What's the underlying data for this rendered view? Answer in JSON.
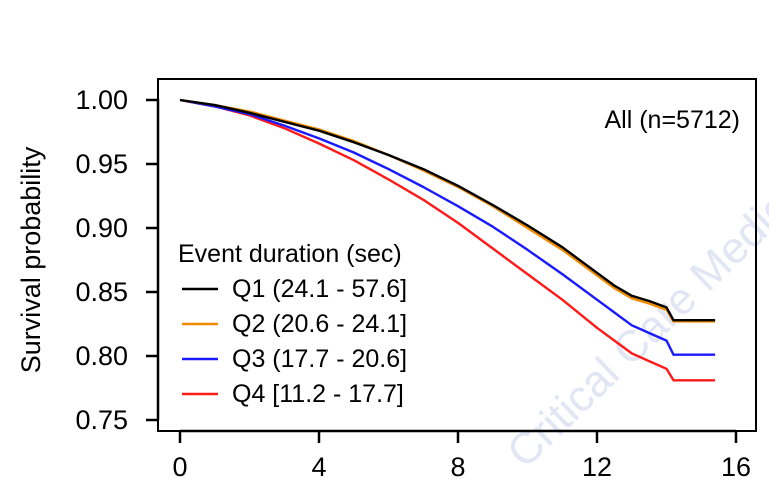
{
  "chart_data": {
    "type": "line",
    "title": "",
    "xlabel": "",
    "ylabel": "Survival probability",
    "annotation": "All (n=5712)",
    "xlim": [
      0,
      16
    ],
    "ylim": [
      0.75,
      1.0
    ],
    "xticks": [
      "0",
      "4",
      "8",
      "12",
      "16"
    ],
    "yticks": [
      "1.00",
      "0.95",
      "0.90",
      "0.85",
      "0.80",
      "0.75"
    ],
    "legend_title": "Event duration (sec)",
    "legend_position": "left",
    "colors": {
      "Q1": "#000000",
      "Q2": "#f08c00",
      "Q3": "#1a1aff",
      "Q4": "#ff1a1a"
    },
    "series": [
      {
        "name": "Q1 (24.1 - 57.6]",
        "color_key": "Q1",
        "x": [
          0,
          1,
          2,
          3,
          4,
          5,
          6,
          7,
          8,
          9,
          10,
          11,
          12,
          12.5,
          13,
          13.5,
          14,
          14.2,
          15.4
        ],
        "y": [
          1.0,
          0.996,
          0.99,
          0.983,
          0.976,
          0.967,
          0.957,
          0.946,
          0.933,
          0.918,
          0.902,
          0.885,
          0.865,
          0.855,
          0.847,
          0.843,
          0.838,
          0.828,
          0.828
        ]
      },
      {
        "name": "Q2 (20.6 - 24.1]",
        "color_key": "Q2",
        "x": [
          0,
          1,
          2,
          3,
          4,
          5,
          6,
          7,
          8,
          9,
          10,
          11,
          12,
          12.5,
          13,
          13.5,
          14,
          14.2,
          15.4
        ],
        "y": [
          1.0,
          0.996,
          0.991,
          0.984,
          0.977,
          0.968,
          0.957,
          0.945,
          0.932,
          0.917,
          0.9,
          0.883,
          0.863,
          0.853,
          0.845,
          0.841,
          0.836,
          0.827,
          0.827
        ]
      },
      {
        "name": "Q3 (17.7 - 20.6]",
        "color_key": "Q3",
        "x": [
          0,
          1,
          2,
          3,
          4,
          5,
          6,
          7,
          8,
          9,
          10,
          11,
          12,
          12.5,
          13,
          13.5,
          14,
          14.2,
          15.4
        ],
        "y": [
          1.0,
          0.995,
          0.989,
          0.98,
          0.97,
          0.959,
          0.946,
          0.932,
          0.917,
          0.901,
          0.883,
          0.864,
          0.844,
          0.834,
          0.824,
          0.818,
          0.812,
          0.801,
          0.801
        ]
      },
      {
        "name": "Q4 [11.2 - 17.7]",
        "color_key": "Q4",
        "x": [
          0,
          1,
          2,
          3,
          4,
          5,
          6,
          7,
          8,
          9,
          10,
          11,
          12,
          12.5,
          13,
          13.5,
          14,
          14.2,
          15.4
        ],
        "y": [
          1.0,
          0.995,
          0.988,
          0.978,
          0.966,
          0.953,
          0.938,
          0.922,
          0.904,
          0.884,
          0.864,
          0.844,
          0.822,
          0.812,
          0.802,
          0.796,
          0.79,
          0.781,
          0.781
        ]
      }
    ],
    "watermark": "Critical Care Medicine"
  }
}
